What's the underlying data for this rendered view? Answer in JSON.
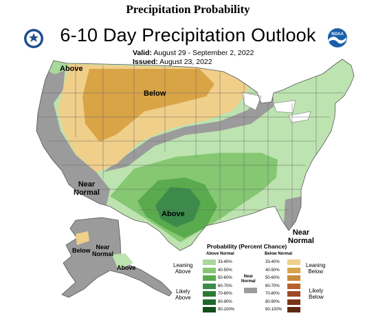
{
  "page_header": "Precipitation Probability",
  "map_title": "6-10 Day Precipitation Outlook",
  "valid": {
    "label": "Valid:",
    "value": "August 29 - September 2, 2022"
  },
  "issued": {
    "label": "Issued:",
    "value": "August 23, 2022"
  },
  "logos": {
    "left": "commerce-seal-icon",
    "right": "noaa-logo-icon",
    "noaa_text": "NOAA"
  },
  "region_labels": {
    "above_nw": "Above",
    "below_central": "Below",
    "near_normal_west": [
      "Near",
      "Normal"
    ],
    "above_texas": "Above",
    "near_normal_se": [
      "Near",
      "Normal"
    ],
    "below_alaska": "Below",
    "near_normal_alaska": [
      "Near",
      "Normal"
    ],
    "above_alaska": "Above"
  },
  "legend": {
    "title": "Probability (Percent Chance)",
    "above_header": "Above Normal",
    "below_header": "Below Normal",
    "near_label": [
      "Near",
      "Normal"
    ],
    "leaning_above": [
      "Leaning",
      "Above"
    ],
    "likely_above": [
      "Likely",
      "Above"
    ],
    "leaning_below": [
      "Leaning",
      "Below"
    ],
    "likely_below": [
      "Likely",
      "Below"
    ],
    "ranges": [
      "33-40%",
      "40-50%",
      "50-60%",
      "60-70%",
      "70-80%",
      "80-90%",
      "90-100%"
    ],
    "above_colors": [
      "#a8d89a",
      "#86c872",
      "#5aab4e",
      "#3c8b4a",
      "#2a7a30",
      "#1e6a2a",
      "#12501a"
    ],
    "below_colors": [
      "#f0cf8a",
      "#d9a446",
      "#c98a3a",
      "#b8612e",
      "#9c4a26",
      "#7a3418",
      "#5c2a10"
    ],
    "near_color": "#9b9b9b"
  }
}
